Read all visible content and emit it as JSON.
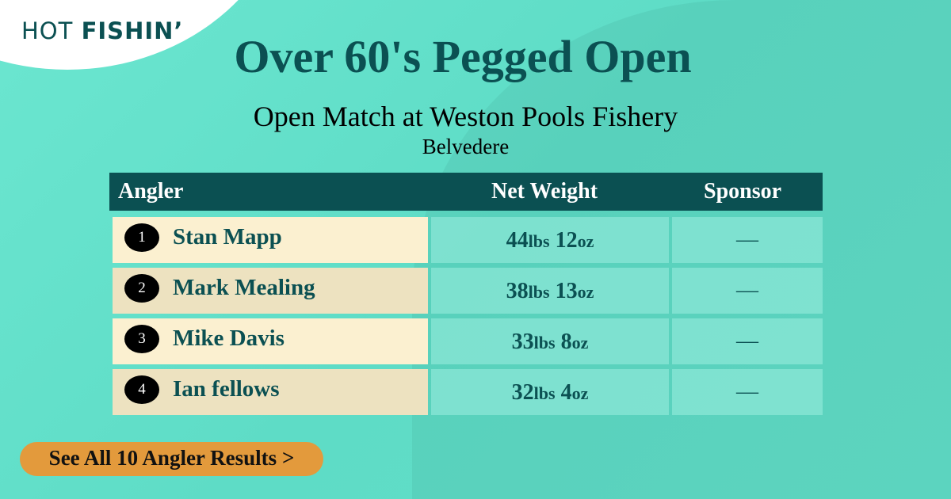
{
  "logo": {
    "light": "HOT",
    "bold": "FISHIN’"
  },
  "title": "Over 60's Pegged Open",
  "subtitle": "Open Match at Weston Pools Fishery",
  "location": "Belvedere",
  "table": {
    "headers": [
      "Angler",
      "Net Weight",
      "Sponsor"
    ],
    "rows": [
      {
        "rank": "1",
        "name": "Stan Mapp",
        "lbs": "44",
        "oz": "12",
        "sponsor": "—"
      },
      {
        "rank": "2",
        "name": "Mark Mealing",
        "lbs": "38",
        "oz": "13",
        "sponsor": "—"
      },
      {
        "rank": "3",
        "name": "Mike Davis",
        "lbs": "33",
        "oz": "8",
        "sponsor": "—"
      },
      {
        "rank": "4",
        "name": "Ian fellows",
        "lbs": "32",
        "oz": "4",
        "sponsor": "—"
      }
    ],
    "unit_lbs": "lbs",
    "unit_oz": "oz"
  },
  "button": {
    "label": "See All 10 Angler Results",
    "arrow": ">"
  },
  "colors": {
    "brand": "#0b5052",
    "button": "#e39a3c",
    "row_odd": "#fbf0d0",
    "row_even": "#ede2c0"
  }
}
